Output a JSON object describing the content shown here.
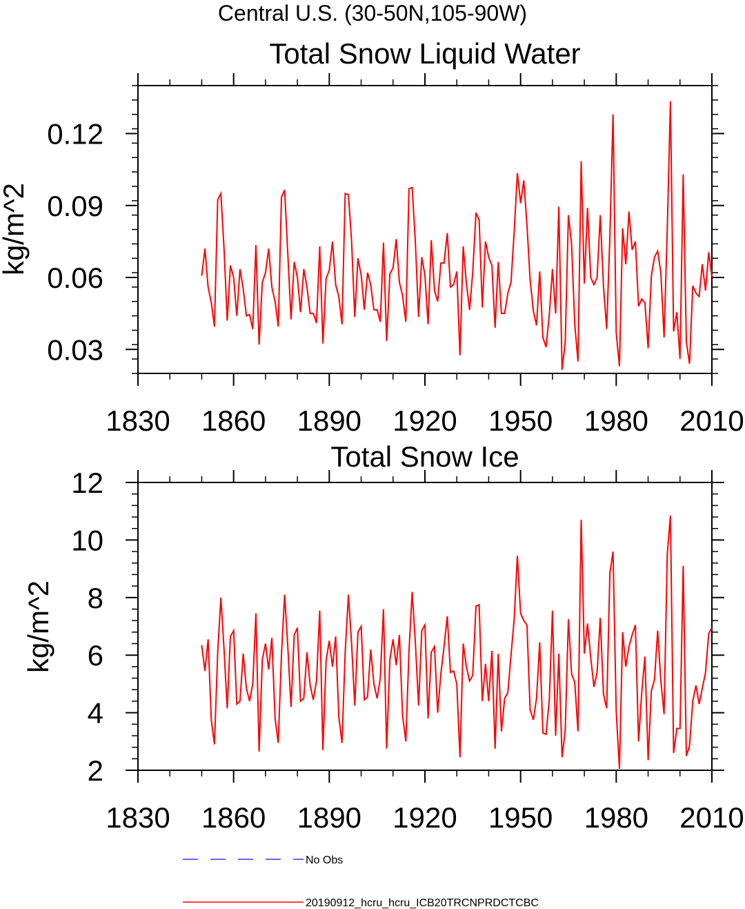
{
  "figure": {
    "region_title": "Central U.S. (30-50N,105-90W)"
  },
  "legend": {
    "entries": [
      {
        "label": "No Obs",
        "color": "#3333ff",
        "style": "dashed"
      },
      {
        "label": "20190912_hcru_hcru_ICB20TRCNPRDCTCBC",
        "color": "#ff0000",
        "style": "solid"
      }
    ]
  },
  "chart_data": [
    {
      "type": "line",
      "title": "Total Snow Liquid Water",
      "xlabel": "",
      "ylabel": "kg/m^2",
      "xlim": [
        1830,
        2010
      ],
      "ylim": [
        0.02,
        0.14
      ],
      "xticks": [
        1830,
        1860,
        1890,
        1920,
        1950,
        1980,
        2010
      ],
      "yticks": [
        0.03,
        0.06,
        0.09,
        0.12
      ],
      "ytick_labels": [
        "0.03",
        "0.06",
        "0.09",
        "0.12"
      ],
      "series": [
        {
          "name": "20190912_hcru_hcru_ICB20TRCNPRDCTCBC",
          "color": "#ff0000",
          "x_start": 1850,
          "values": [
            0.0607,
            0.072,
            0.056,
            0.0495,
            0.0395,
            0.0925,
            0.095,
            0.072,
            0.042,
            0.065,
            0.06,
            0.044,
            0.0635,
            0.0555,
            0.044,
            0.0445,
            0.0385,
            0.0735,
            0.032,
            0.058,
            0.062,
            0.072,
            0.056,
            0.05,
            0.0395,
            0.0935,
            0.0965,
            0.07,
            0.0425,
            0.0665,
            0.06,
            0.0455,
            0.0635,
            0.056,
            0.045,
            0.045,
            0.041,
            0.073,
            0.0325,
            0.0595,
            0.063,
            0.075,
            0.057,
            0.052,
            0.0405,
            0.095,
            0.0945,
            0.075,
            0.0435,
            0.068,
            0.061,
            0.0465,
            0.062,
            0.057,
            0.0465,
            0.0465,
            0.0415,
            0.0745,
            0.0335,
            0.0615,
            0.064,
            0.076,
            0.058,
            0.0525,
            0.0415,
            0.097,
            0.0975,
            0.075,
            0.0435,
            0.0685,
            0.061,
            0.0405,
            0.0755,
            0.0545,
            0.05,
            0.066,
            0.066,
            0.0785,
            0.056,
            0.057,
            0.0625,
            0.0275,
            0.073,
            0.0575,
            0.0465,
            0.062,
            0.087,
            0.084,
            0.0475,
            0.075,
            0.0685,
            0.065,
            0.039,
            0.0665,
            0.045,
            0.045,
            0.0535,
            0.058,
            0.079,
            0.1035,
            0.091,
            0.1005,
            0.082,
            0.059,
            0.046,
            0.04,
            0.0625,
            0.035,
            0.031,
            0.0445,
            0.0635,
            0.045,
            0.0895,
            0.0215,
            0.033,
            0.086,
            0.074,
            0.0405,
            0.025,
            0.1085,
            0.0575,
            0.089,
            0.06,
            0.057,
            0.06,
            0.086,
            0.0565,
            0.0385,
            0.077,
            0.128,
            0.037,
            0.023,
            0.0805,
            0.0655,
            0.0875,
            0.0715,
            0.075,
            0.048,
            0.051,
            0.0495,
            0.0305,
            0.0605,
            0.0685,
            0.071,
            0.062,
            0.035,
            0.08,
            0.1335,
            0.0375,
            0.0455,
            0.026,
            0.103,
            0.033,
            0.024,
            0.0565,
            0.0535,
            0.052,
            0.0655,
            0.0545,
            0.0705,
            0.0605
          ]
        }
      ]
    },
    {
      "type": "line",
      "title": "Total Snow Ice",
      "xlabel": "",
      "ylabel": "kg/m^2",
      "xlim": [
        1830,
        2010
      ],
      "ylim": [
        2,
        12
      ],
      "xticks": [
        1830,
        1860,
        1890,
        1920,
        1950,
        1980,
        2010
      ],
      "yticks": [
        2,
        4,
        6,
        8,
        10,
        12
      ],
      "ytick_labels": [
        "2",
        "4",
        "6",
        "8",
        "10",
        "12"
      ],
      "series": [
        {
          "name": "20190912_hcru_hcru_ICB20TRCNPRDCTCBC",
          "color": "#ff0000",
          "x_start": 1850,
          "values": [
            6.35,
            5.45,
            6.55,
            3.75,
            2.9,
            6.1,
            8.0,
            6.2,
            4.15,
            6.65,
            6.85,
            4.3,
            4.4,
            6.05,
            4.85,
            4.4,
            5.0,
            7.45,
            2.65,
            5.85,
            6.4,
            5.5,
            6.6,
            3.8,
            2.95,
            6.0,
            8.1,
            6.3,
            4.2,
            6.7,
            6.95,
            4.4,
            4.5,
            6.1,
            4.95,
            4.45,
            5.1,
            7.55,
            2.7,
            5.8,
            6.5,
            5.6,
            6.65,
            3.85,
            2.95,
            6.1,
            8.1,
            6.4,
            4.25,
            6.8,
            7.0,
            4.45,
            4.55,
            6.2,
            5.0,
            4.5,
            5.2,
            7.6,
            2.75,
            5.85,
            6.55,
            5.65,
            6.7,
            3.9,
            3.0,
            6.15,
            8.2,
            6.45,
            4.25,
            6.85,
            7.05,
            3.8,
            6.1,
            6.3,
            4.0,
            5.35,
            6.3,
            7.35,
            5.4,
            5.45,
            5.0,
            2.45,
            6.4,
            5.6,
            5.1,
            5.3,
            7.7,
            7.75,
            4.4,
            5.7,
            4.4,
            6.15,
            2.75,
            6.05,
            3.35,
            4.5,
            4.7,
            6.0,
            7.25,
            9.45,
            7.45,
            7.2,
            7.05,
            4.1,
            3.75,
            4.5,
            6.45,
            3.3,
            3.25,
            4.45,
            7.55,
            3.2,
            6.05,
            2.45,
            3.4,
            7.25,
            5.35,
            5.05,
            3.35,
            10.7,
            6.05,
            7.1,
            5.9,
            4.9,
            5.4,
            7.3,
            4.65,
            4.15,
            8.85,
            9.6,
            4.05,
            2.05,
            6.8,
            5.6,
            6.3,
            6.7,
            7.05,
            3.0,
            4.7,
            5.95,
            2.35,
            4.75,
            5.15,
            6.85,
            5.1,
            3.95,
            9.5,
            10.85,
            2.6,
            3.45,
            3.45,
            9.1,
            2.5,
            2.85,
            4.4,
            4.95,
            4.3,
            4.85,
            5.4,
            6.75,
            6.95
          ]
        }
      ]
    }
  ]
}
